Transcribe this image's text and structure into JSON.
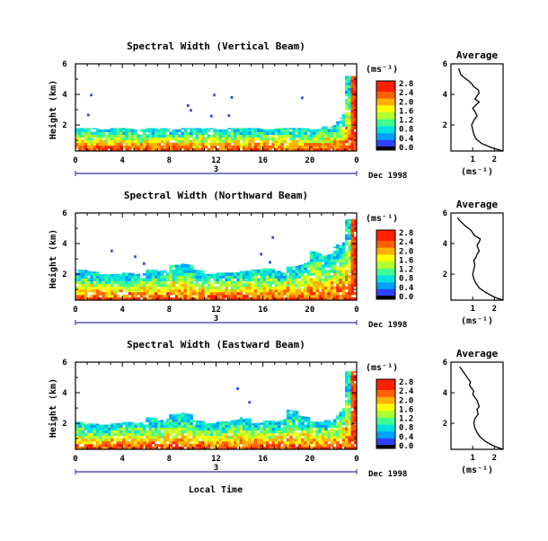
{
  "figure": {
    "x_axis_title": "Local Time",
    "date_label": "Dec 1998",
    "day_label": "3",
    "y_axis_title": "Height (km)",
    "units_label": "(ms⁻¹)",
    "average_title": "Average",
    "average_xlabel": "(ms⁻¹)"
  },
  "colorbar": {
    "ticks": [
      "0.0",
      "0.4",
      "0.8",
      "1.2",
      "1.6",
      "2.0",
      "2.4",
      "2.8"
    ],
    "colors": [
      "#000000",
      "#7a00b0",
      "#3040ff",
      "#00a0ff",
      "#00e0e0",
      "#40ff90",
      "#b0ff30",
      "#ffff00",
      "#ffb000",
      "#ff6000",
      "#ff2000"
    ]
  },
  "chart_data": [
    {
      "type": "heatmap",
      "title": "Spectral Width (Vertical Beam)",
      "xlabel": "Local Time",
      "ylabel": "Height (km)",
      "x_ticks": [
        "0",
        "4",
        "8",
        "12",
        "16",
        "20",
        "0"
      ],
      "xlim": [
        0,
        24
      ],
      "y_ticks": [
        "2",
        "4",
        "6"
      ],
      "ylim": [
        0.3,
        6
      ],
      "color_ticks": [
        "0.0",
        "0.4",
        "0.8",
        "1.2",
        "1.6",
        "2.0",
        "2.4",
        "2.8"
      ],
      "echo_top_km": [
        1.8,
        1.8,
        1.7,
        1.8,
        1.8,
        1.7,
        1.8,
        1.8,
        1.7,
        1.8,
        1.8,
        1.8,
        1.7,
        1.8,
        1.8,
        1.8,
        1.7,
        1.8,
        1.8,
        1.8,
        1.7,
        1.9,
        2.0,
        5.2
      ],
      "average": {
        "type": "line",
        "title": "Average",
        "xlim": [
          0,
          2.4
        ],
        "ylim": [
          0.3,
          6
        ],
        "x_ticks": [
          "1",
          "2"
        ],
        "y_ticks": [
          "2",
          "4",
          "6"
        ],
        "x": [
          2.4,
          1.9,
          1.4,
          1.15,
          1.05,
          1.0,
          0.95,
          1.05,
          1.2,
          1.1,
          1.0,
          1.15,
          1.3,
          1.1,
          1.2,
          1.3,
          1.25,
          1.05,
          0.95,
          0.8,
          0.6,
          0.45,
          0.4,
          0.35
        ],
        "y": [
          0.3,
          0.5,
          0.8,
          1.1,
          1.4,
          1.7,
          2.0,
          2.3,
          2.6,
          2.9,
          3.1,
          3.3,
          3.5,
          3.7,
          3.9,
          4.1,
          4.3,
          4.5,
          4.7,
          4.9,
          5.1,
          5.3,
          5.5,
          5.7
        ]
      }
    },
    {
      "type": "heatmap",
      "title": "Spectral Width (Northward Beam)",
      "xlabel": "Local Time",
      "ylabel": "Height (km)",
      "x_ticks": [
        "0",
        "4",
        "8",
        "12",
        "16",
        "20",
        "0"
      ],
      "xlim": [
        0,
        24
      ],
      "y_ticks": [
        "2",
        "4",
        "6"
      ],
      "ylim": [
        0.3,
        6
      ],
      "color_ticks": [
        "0.0",
        "0.4",
        "0.8",
        "1.2",
        "1.6",
        "2.0",
        "2.4",
        "2.8"
      ],
      "echo_top_km": [
        2.3,
        2.2,
        2.0,
        2.0,
        2.1,
        2.0,
        2.3,
        2.2,
        2.6,
        2.7,
        2.3,
        2.0,
        2.1,
        2.1,
        2.2,
        2.3,
        2.4,
        2.2,
        2.5,
        2.6,
        3.5,
        3.2,
        3.8,
        5.6
      ],
      "average": {
        "type": "line",
        "title": "Average",
        "xlim": [
          0,
          2.4
        ],
        "ylim": [
          0.3,
          6
        ],
        "x_ticks": [
          "1",
          "2"
        ],
        "y_ticks": [
          "2",
          "4",
          "6"
        ],
        "x": [
          2.4,
          2.0,
          1.6,
          1.3,
          1.15,
          1.05,
          1.0,
          1.05,
          1.1,
          1.05,
          1.15,
          1.2,
          1.3,
          1.25,
          1.2,
          1.3,
          1.35,
          1.1,
          1.0,
          0.9,
          0.7,
          0.55,
          0.4,
          0.3
        ],
        "y": [
          0.3,
          0.5,
          0.8,
          1.1,
          1.4,
          1.7,
          2.0,
          2.3,
          2.6,
          2.9,
          3.1,
          3.3,
          3.5,
          3.7,
          3.9,
          4.1,
          4.3,
          4.5,
          4.7,
          4.9,
          5.1,
          5.3,
          5.5,
          5.7
        ]
      }
    },
    {
      "type": "heatmap",
      "title": "Spectral Width (Eastward Beam)",
      "xlabel": "Local Time",
      "ylabel": "Height (km)",
      "x_ticks": [
        "0",
        "4",
        "8",
        "12",
        "16",
        "20",
        "0"
      ],
      "xlim": [
        0,
        24
      ],
      "y_ticks": [
        "2",
        "4",
        "6"
      ],
      "ylim": [
        0.3,
        6
      ],
      "color_ticks": [
        "0.0",
        "0.4",
        "0.8",
        "1.2",
        "1.6",
        "2.0",
        "2.4",
        "2.8"
      ],
      "echo_top_km": [
        2.1,
        2.0,
        1.9,
        2.0,
        2.1,
        2.0,
        2.4,
        2.2,
        2.6,
        2.7,
        2.2,
        2.0,
        2.1,
        2.2,
        2.4,
        2.0,
        2.2,
        2.1,
        2.9,
        2.5,
        2.1,
        2.2,
        2.3,
        5.4
      ],
      "average": {
        "type": "line",
        "title": "Average",
        "xlim": [
          0,
          2.4
        ],
        "ylim": [
          0.3,
          6
        ],
        "x_ticks": [
          "1",
          "2"
        ],
        "y_ticks": [
          "2",
          "4",
          "6"
        ],
        "x": [
          2.4,
          2.0,
          1.6,
          1.35,
          1.2,
          1.1,
          1.05,
          1.1,
          1.25,
          1.2,
          1.3,
          1.25,
          1.2,
          1.1,
          1.0,
          1.05,
          0.95,
          0.85,
          0.9,
          0.8,
          0.7,
          0.6,
          0.5,
          0.4
        ],
        "y": [
          0.3,
          0.5,
          0.8,
          1.1,
          1.4,
          1.7,
          2.0,
          2.3,
          2.6,
          2.9,
          3.1,
          3.3,
          3.5,
          3.7,
          3.9,
          4.1,
          4.3,
          4.5,
          4.7,
          4.9,
          5.1,
          5.3,
          5.5,
          5.7
        ]
      }
    }
  ]
}
